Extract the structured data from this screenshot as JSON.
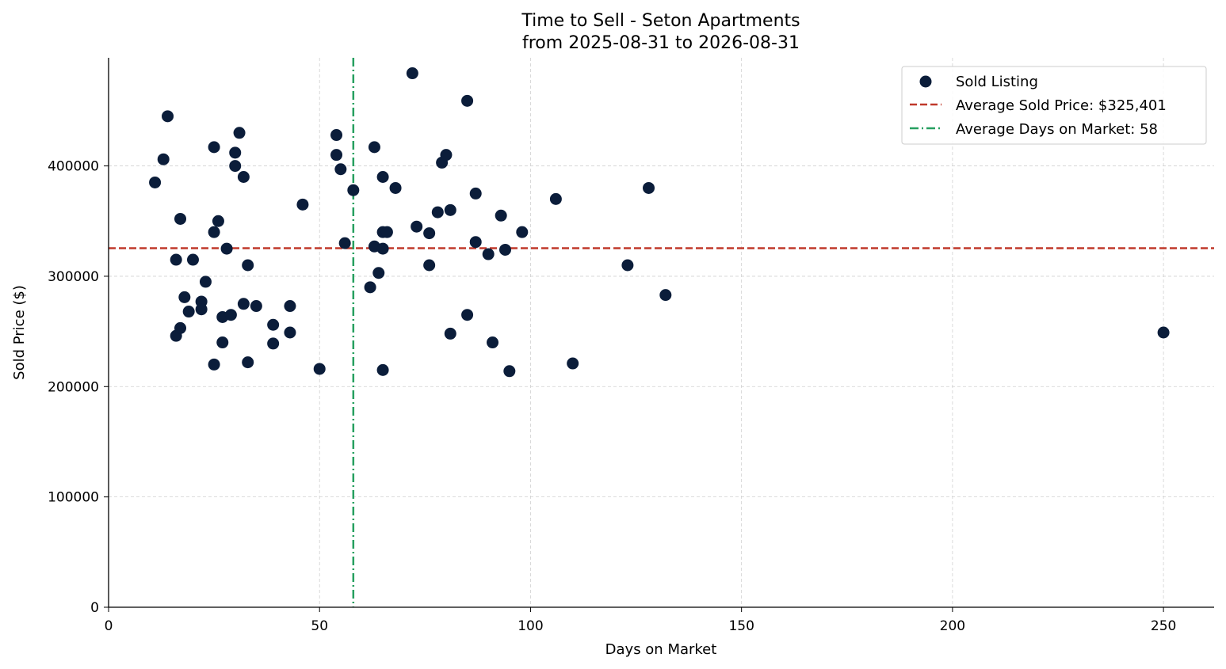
{
  "chart_data": {
    "type": "scatter",
    "title": "Time to Sell - Seton Apartments",
    "subtitle": "from 2025-08-31 to 2026-08-31",
    "xlabel": "Days on Market",
    "ylabel": "Sold Price ($)",
    "xlim": [
      0,
      262
    ],
    "ylim": [
      0,
      498000
    ],
    "xticks": [
      0,
      50,
      100,
      150,
      200,
      250
    ],
    "yticks": [
      0,
      100000,
      200000,
      300000,
      400000
    ],
    "grid": true,
    "legend_position": "top-right",
    "colors": {
      "points": "#0b1d3a",
      "avg_price": "#c0392b",
      "avg_days": "#27a060"
    },
    "series": [
      {
        "name": "Sold Listing",
        "points": [
          [
            11,
            385000
          ],
          [
            13,
            406000
          ],
          [
            14,
            445000
          ],
          [
            16,
            315000
          ],
          [
            16,
            246000
          ],
          [
            17,
            352000
          ],
          [
            17,
            253000
          ],
          [
            18,
            281000
          ],
          [
            19,
            268000
          ],
          [
            20,
            315000
          ],
          [
            22,
            277000
          ],
          [
            22,
            270000
          ],
          [
            23,
            295000
          ],
          [
            25,
            417000
          ],
          [
            25,
            340000
          ],
          [
            25,
            220000
          ],
          [
            26,
            350000
          ],
          [
            27,
            263000
          ],
          [
            27,
            240000
          ],
          [
            28,
            325000
          ],
          [
            29,
            265000
          ],
          [
            30,
            412000
          ],
          [
            30,
            400000
          ],
          [
            31,
            430000
          ],
          [
            32,
            390000
          ],
          [
            32,
            275000
          ],
          [
            33,
            310000
          ],
          [
            33,
            222000
          ],
          [
            35,
            273000
          ],
          [
            39,
            256000
          ],
          [
            39,
            239000
          ],
          [
            43,
            273000
          ],
          [
            43,
            249000
          ],
          [
            46,
            365000
          ],
          [
            50,
            216000
          ],
          [
            54,
            428000
          ],
          [
            54,
            410000
          ],
          [
            55,
            397000
          ],
          [
            56,
            330000
          ],
          [
            58,
            378000
          ],
          [
            62,
            290000
          ],
          [
            63,
            417000
          ],
          [
            63,
            327000
          ],
          [
            64,
            303000
          ],
          [
            65,
            390000
          ],
          [
            65,
            340000
          ],
          [
            65,
            325000
          ],
          [
            65,
            215000
          ],
          [
            66,
            340000
          ],
          [
            68,
            380000
          ],
          [
            72,
            484000
          ],
          [
            73,
            345000
          ],
          [
            76,
            339000
          ],
          [
            76,
            310000
          ],
          [
            78,
            358000
          ],
          [
            79,
            403000
          ],
          [
            80,
            410000
          ],
          [
            81,
            360000
          ],
          [
            81,
            248000
          ],
          [
            85,
            459000
          ],
          [
            85,
            265000
          ],
          [
            87,
            375000
          ],
          [
            87,
            331000
          ],
          [
            90,
            320000
          ],
          [
            91,
            240000
          ],
          [
            93,
            355000
          ],
          [
            94,
            324000
          ],
          [
            95,
            214000
          ],
          [
            98,
            340000
          ],
          [
            106,
            370000
          ],
          [
            110,
            221000
          ],
          [
            123,
            310000
          ],
          [
            128,
            380000
          ],
          [
            132,
            283000
          ],
          [
            250,
            249000
          ]
        ]
      }
    ],
    "reference_lines": [
      {
        "name": "Average Sold Price: $325,401",
        "orientation": "horizontal",
        "value": 325401,
        "style": "dashed"
      },
      {
        "name": "Average Days on Market: 58",
        "orientation": "vertical",
        "value": 58,
        "style": "dashdot"
      }
    ]
  }
}
